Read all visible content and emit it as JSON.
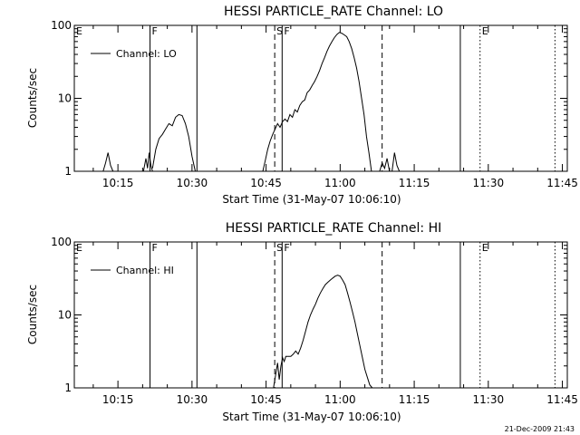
{
  "footer_timestamp": "21-Dec-2009 21:43",
  "chart_data": [
    {
      "type": "line",
      "title": "HESSI PARTICLE_RATE Channel: LO",
      "xlabel": "Start Time (31-May-07 10:06:10)",
      "ylabel": "Counts/sec",
      "yscale": "log",
      "ylim": [
        1,
        100
      ],
      "xlim": [
        "10:06:10",
        "11:46:00"
      ],
      "x_ticks": [
        "10:15",
        "10:30",
        "10:45",
        "11:00",
        "11:15",
        "11:30",
        "11:45"
      ],
      "y_ticks": [
        "1",
        "10",
        "100"
      ],
      "legend": {
        "placement": "top-left",
        "entries": [
          "Channel: LO"
        ]
      },
      "markers": [
        {
          "label": "E",
          "time": "10:06:10",
          "style": "none"
        },
        {
          "label": "F",
          "time": "10:21:30",
          "style": "solid"
        },
        {
          "label": "",
          "time": "10:31:00",
          "style": "solid"
        },
        {
          "label": "S",
          "time": "10:46:45",
          "style": "dashed"
        },
        {
          "label": "F",
          "time": "10:48:15",
          "style": "solid"
        },
        {
          "label": "",
          "time": "11:08:30",
          "style": "dashed"
        },
        {
          "label": "",
          "time": "11:24:20",
          "style": "solid"
        },
        {
          "label": "E",
          "time": "11:28:20",
          "style": "dotted"
        },
        {
          "label": "",
          "time": "11:43:30",
          "style": "dotted"
        }
      ],
      "series": [
        {
          "segments": [
            {
              "x": [
                "10:12:00",
                "10:12:30",
                "10:13:00",
                "10:13:30",
                "10:14:00"
              ],
              "y": [
                1,
                1.3,
                1.8,
                1.2,
                1
              ]
            },
            {
              "x": [
                "10:20:10",
                "10:20:40",
                "10:21:00",
                "10:21:20",
                "10:21:40",
                "10:22:00"
              ],
              "y": [
                1,
                1.5,
                1.1,
                1.8,
                1.2,
                1
              ]
            },
            {
              "x": [
                "10:22:00",
                "10:22:40",
                "10:23:20",
                "10:24:00",
                "10:24:40",
                "10:25:20",
                "10:26:00",
                "10:26:40",
                "10:27:20",
                "10:28:00",
                "10:28:40",
                "10:29:20",
                "10:30:00",
                "10:30:40"
              ],
              "y": [
                1.1,
                2,
                2.8,
                3.2,
                3.8,
                4.5,
                4.2,
                5.5,
                6,
                5.8,
                4.5,
                3,
                1.6,
                1
              ]
            },
            {
              "x": [
                "10:44:20",
                "10:44:50",
                "10:45:20",
                "10:45:50",
                "10:46:20",
                "10:46:50",
                "10:47:20",
                "10:47:50",
                "10:48:20",
                "10:48:50",
                "10:49:20",
                "10:49:50",
                "10:50:20",
                "10:50:50",
                "10:51:20",
                "10:51:50",
                "10:52:20",
                "10:52:50",
                "10:53:20",
                "10:53:50",
                "10:54:20",
                "10:54:50",
                "10:55:20",
                "10:55:50",
                "10:56:20",
                "10:56:50",
                "10:57:20",
                "10:57:50",
                "10:58:20",
                "10:58:50",
                "10:59:20",
                "10:59:50",
                "11:00:20",
                "11:00:50",
                "11:01:20",
                "11:01:50",
                "11:02:20",
                "11:02:50",
                "11:03:20",
                "11:03:50",
                "11:04:20",
                "11:04:50",
                "11:05:20",
                "11:05:50",
                "11:06:20"
              ],
              "y": [
                1,
                1.4,
                2,
                2.6,
                3.2,
                3.8,
                4.5,
                4,
                4.8,
                5.2,
                4.8,
                6,
                5.5,
                7,
                6.5,
                8,
                9,
                9.5,
                12,
                13,
                15,
                17,
                20,
                24,
                30,
                36,
                44,
                52,
                60,
                68,
                75,
                80,
                78,
                74,
                70,
                60,
                48,
                36,
                26,
                17,
                10,
                6,
                3,
                1.8,
                1
              ]
            },
            {
              "x": [
                "11:08:00",
                "11:08:30",
                "11:09:00",
                "11:09:30",
                "11:10:00"
              ],
              "y": [
                1,
                1.3,
                1.1,
                1.5,
                1
              ]
            },
            {
              "x": [
                "11:10:30",
                "11:11:00",
                "11:11:30",
                "11:12:00"
              ],
              "y": [
                1,
                1.8,
                1.2,
                1
              ]
            }
          ]
        }
      ]
    },
    {
      "type": "line",
      "title": "HESSI PARTICLE_RATE Channel: HI",
      "xlabel": "Start Time (31-May-07 10:06:10)",
      "ylabel": "Counts/sec",
      "yscale": "log",
      "ylim": [
        1,
        100
      ],
      "xlim": [
        "10:06:10",
        "11:46:00"
      ],
      "x_ticks": [
        "10:15",
        "10:30",
        "10:45",
        "11:00",
        "11:15",
        "11:30",
        "11:45"
      ],
      "y_ticks": [
        "1",
        "10",
        "100"
      ],
      "legend": {
        "placement": "top-left",
        "entries": [
          "Channel: HI"
        ]
      },
      "markers": [
        {
          "label": "E",
          "time": "10:06:10",
          "style": "none"
        },
        {
          "label": "F",
          "time": "10:21:30",
          "style": "solid"
        },
        {
          "label": "",
          "time": "10:31:00",
          "style": "solid"
        },
        {
          "label": "S",
          "time": "10:46:45",
          "style": "dashed"
        },
        {
          "label": "F",
          "time": "10:48:15",
          "style": "solid"
        },
        {
          "label": "",
          "time": "11:08:30",
          "style": "dashed"
        },
        {
          "label": "",
          "time": "11:24:20",
          "style": "solid"
        },
        {
          "label": "E",
          "time": "11:28:20",
          "style": "dotted"
        },
        {
          "label": "",
          "time": "11:43:30",
          "style": "dotted"
        }
      ],
      "series": [
        {
          "segments": [
            {
              "x": [
                "10:46:30",
                "10:47:00",
                "10:47:20",
                "10:47:40",
                "10:48:00",
                "10:48:20",
                "10:48:40",
                "10:49:00",
                "10:49:30",
                "10:50:00",
                "10:50:30",
                "10:51:00",
                "10:51:30",
                "10:52:00",
                "10:52:30",
                "10:53:00",
                "10:53:30",
                "10:54:00",
                "10:54:30",
                "10:55:00",
                "10:55:30",
                "10:56:00",
                "10:56:30",
                "10:57:00",
                "10:57:30",
                "10:58:00",
                "10:58:30",
                "10:59:00",
                "10:59:30",
                "11:00:00",
                "11:00:30",
                "11:01:00",
                "11:01:30",
                "11:02:00",
                "11:02:30",
                "11:03:00",
                "11:03:30",
                "11:04:00",
                "11:04:30",
                "11:05:00",
                "11:05:30",
                "11:06:00",
                "11:06:30"
              ],
              "y": [
                1,
                1.6,
                2.2,
                1.3,
                2,
                2.6,
                2.3,
                2.7,
                2.7,
                2.7,
                2.9,
                3.2,
                2.9,
                3.5,
                4.5,
                6,
                8,
                10,
                12,
                14,
                17,
                20,
                23,
                26,
                28,
                30,
                32,
                34,
                35,
                34,
                30,
                26,
                20,
                15,
                11,
                8,
                5.5,
                3.8,
                2.6,
                1.8,
                1.4,
                1.1,
                1
              ]
            }
          ]
        }
      ]
    }
  ]
}
